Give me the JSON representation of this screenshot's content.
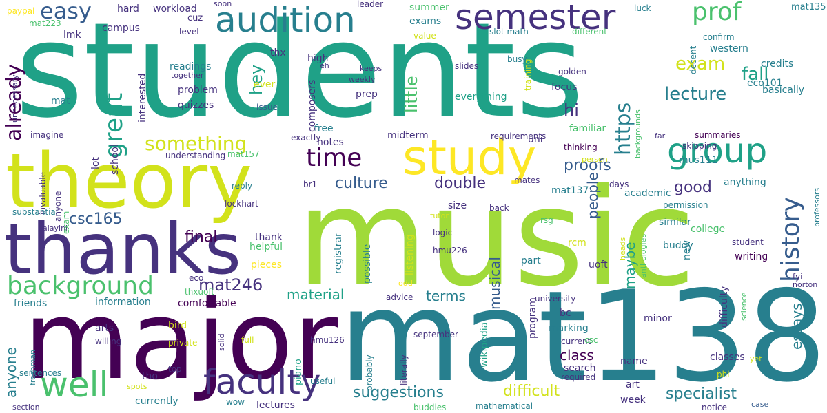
{
  "palette": [
    "#440154",
    "#46327e",
    "#365c8d",
    "#277f8e",
    "#1fa187",
    "#4ac16d",
    "#a0da39",
    "#d2e21b",
    "#fde725"
  ],
  "words": [
    {
      "text": "students",
      "color": "#1fa187"
    },
    {
      "text": "music",
      "color": "#a0da39"
    },
    {
      "text": "mat138",
      "color": "#277f8e"
    },
    {
      "text": "major",
      "color": "#440154"
    },
    {
      "text": "theory",
      "color": "#d2e21b"
    },
    {
      "text": "thanks",
      "color": "#46327e"
    },
    {
      "text": "study",
      "color": "#fde725"
    },
    {
      "text": "faculty",
      "color": "#46327e"
    },
    {
      "text": "well",
      "color": "#4ac16d"
    },
    {
      "text": "audition",
      "color": "#277f8e"
    },
    {
      "text": "semester",
      "color": "#46327e"
    },
    {
      "text": "group",
      "color": "#1fa187"
    },
    {
      "text": "background",
      "color": "#4ac16d"
    },
    {
      "text": "time",
      "color": "#440154"
    },
    {
      "text": "history",
      "color": "#365c8d"
    },
    {
      "text": "prof",
      "color": "#4ac16d"
    },
    {
      "text": "great",
      "color": "#1fa187"
    },
    {
      "text": "already",
      "color": "#440154"
    },
    {
      "text": "easy",
      "color": "#365c8d"
    },
    {
      "text": "something",
      "color": "#d2e21b"
    },
    {
      "text": "https",
      "color": "#277f8e"
    },
    {
      "text": "fall",
      "color": "#1fa187"
    },
    {
      "text": "exam",
      "color": "#d2e21b"
    },
    {
      "text": "lecture",
      "color": "#277f8e"
    },
    {
      "text": "hey",
      "color": "#1fa187"
    },
    {
      "text": "little",
      "color": "#4ac16d"
    },
    {
      "text": "hi",
      "color": "#46327e"
    },
    {
      "text": "culture",
      "color": "#365c8d"
    },
    {
      "text": "double",
      "color": "#46327e"
    },
    {
      "text": "proofs",
      "color": "#365c8d"
    },
    {
      "text": "good",
      "color": "#46327e"
    },
    {
      "text": "csc165",
      "color": "#365c8d"
    },
    {
      "text": "final",
      "color": "#440154"
    },
    {
      "text": "mat246",
      "color": "#46327e"
    },
    {
      "text": "material",
      "color": "#1fa187"
    },
    {
      "text": "terms",
      "color": "#277f8e"
    },
    {
      "text": "musical",
      "color": "#365c8d"
    },
    {
      "text": "people",
      "color": "#365c8d"
    },
    {
      "text": "maybe",
      "color": "#1fa187"
    },
    {
      "text": "essays",
      "color": "#277f8e"
    },
    {
      "text": "class",
      "color": "#440154"
    },
    {
      "text": "anyone",
      "color": "#277f8e"
    },
    {
      "text": "suggestions",
      "color": "#277f8e"
    },
    {
      "text": "difficult",
      "color": "#d2e21b"
    },
    {
      "text": "specialist",
      "color": "#277f8e"
    },
    {
      "text": "mus111",
      "color": "#277f8e"
    },
    {
      "text": "anything",
      "color": "#277f8e"
    },
    {
      "text": "credits",
      "color": "#277f8e"
    },
    {
      "text": "western",
      "color": "#277f8e"
    },
    {
      "text": "eco101",
      "color": "#277f8e"
    },
    {
      "text": "basically",
      "color": "#277f8e"
    },
    {
      "text": "mat135",
      "color": "#277f8e"
    },
    {
      "text": "confirm",
      "color": "#277f8e"
    },
    {
      "text": "luck",
      "color": "#277f8e"
    },
    {
      "text": "decent",
      "color": "#277f8e"
    },
    {
      "text": "different",
      "color": "#4ac16d"
    },
    {
      "text": "value",
      "color": "#d2e21b"
    },
    {
      "text": "training",
      "color": "#d2e21b"
    },
    {
      "text": "busy",
      "color": "#277f8e"
    },
    {
      "text": "slot math",
      "color": "#277f8e"
    },
    {
      "text": "summer",
      "color": "#4ac16d"
    },
    {
      "text": "exams",
      "color": "#277f8e"
    },
    {
      "text": "leader",
      "color": "#46327e"
    },
    {
      "text": "soon",
      "color": "#46327e"
    },
    {
      "text": "workload",
      "color": "#46327e"
    },
    {
      "text": "hard",
      "color": "#46327e"
    },
    {
      "text": "paypal",
      "color": "#fde725"
    },
    {
      "text": "mat223",
      "color": "#4ac16d"
    },
    {
      "text": "lmk",
      "color": "#46327e"
    },
    {
      "text": "campus",
      "color": "#46327e"
    },
    {
      "text": "cuz",
      "color": "#46327e"
    },
    {
      "text": "level",
      "color": "#46327e"
    },
    {
      "text": "thx",
      "color": "#46327e"
    },
    {
      "text": "high",
      "color": "#46327e"
    },
    {
      "text": "eh",
      "color": "#46327e"
    },
    {
      "text": "keeps",
      "color": "#46327e"
    },
    {
      "text": "slides",
      "color": "#46327e"
    },
    {
      "text": "golden",
      "color": "#46327e"
    },
    {
      "text": "focus",
      "color": "#46327e"
    },
    {
      "text": "everything",
      "color": "#1fa187"
    },
    {
      "text": "weekly",
      "color": "#46327e"
    },
    {
      "text": "prep",
      "color": "#46327e"
    },
    {
      "text": "ever",
      "color": "#d2e21b"
    },
    {
      "text": "readings",
      "color": "#277f8e"
    },
    {
      "text": "together",
      "color": "#46327e"
    },
    {
      "text": "problem",
      "color": "#46327e"
    },
    {
      "text": "quizzes",
      "color": "#46327e"
    },
    {
      "text": "interested",
      "color": "#46327e"
    },
    {
      "text": "composers",
      "color": "#46327e"
    },
    {
      "text": "nalayini",
      "color": "#46327e"
    },
    {
      "text": "mat",
      "color": "#277f8e"
    },
    {
      "text": "unnecessary",
      "color": "#46327e"
    },
    {
      "text": "issue",
      "color": "#365c8d"
    },
    {
      "text": "imagine",
      "color": "#46327e"
    },
    {
      "text": "exactly",
      "color": "#46327e"
    },
    {
      "text": "free",
      "color": "#277f8e"
    },
    {
      "text": "notes",
      "color": "#46327e"
    },
    {
      "text": "midterm",
      "color": "#46327e"
    },
    {
      "text": "requirements",
      "color": "#46327e"
    },
    {
      "text": "uni",
      "color": "#46327e"
    },
    {
      "text": "familiar",
      "color": "#4ac16d"
    },
    {
      "text": "thinking",
      "color": "#440154"
    },
    {
      "text": "person",
      "color": "#d2e21b"
    },
    {
      "text": "backgrounds",
      "color": "#4ac16d"
    },
    {
      "text": "far",
      "color": "#46327e"
    },
    {
      "text": "summaries",
      "color": "#440154"
    },
    {
      "text": "skipping",
      "color": "#46327e"
    },
    {
      "text": "lot",
      "color": "#46327e"
    },
    {
      "text": "school",
      "color": "#46327e"
    },
    {
      "text": "understanding",
      "color": "#46327e"
    },
    {
      "text": "mat157",
      "color": "#4ac16d"
    },
    {
      "text": "br1",
      "color": "#46327e"
    },
    {
      "text": "mates",
      "color": "#46327e"
    },
    {
      "text": "mat137",
      "color": "#277f8e"
    },
    {
      "text": "days",
      "color": "#46327e"
    },
    {
      "text": "academic",
      "color": "#277f8e"
    },
    {
      "text": "professors",
      "color": "#277f8e"
    },
    {
      "text": "invaluable",
      "color": "#46327e"
    },
    {
      "text": "anyone",
      "color": "#46327e"
    },
    {
      "text": "reply",
      "color": "#277f8e"
    },
    {
      "text": "lockhart",
      "color": "#46327e"
    },
    {
      "text": "permission",
      "color": "#277f8e"
    },
    {
      "text": "substantial",
      "color": "#277f8e"
    },
    {
      "text": "exam",
      "color": "#4ac16d"
    },
    {
      "text": "size",
      "color": "#46327e"
    },
    {
      "text": "tutor",
      "color": "#d2e21b"
    },
    {
      "text": "back",
      "color": "#46327e"
    },
    {
      "text": "rsg",
      "color": "#4ac16d"
    },
    {
      "text": "similar",
      "color": "#277f8e"
    },
    {
      "text": "student",
      "color": "#46327e"
    },
    {
      "text": "logic",
      "color": "#46327e"
    },
    {
      "text": "rcm",
      "color": "#d2e21b"
    },
    {
      "text": "new",
      "color": "#277f8e"
    },
    {
      "text": "college",
      "color": "#4ac16d"
    },
    {
      "text": "heads",
      "color": "#d2e21b"
    },
    {
      "text": "anthologies",
      "color": "#4ac16d"
    },
    {
      "text": "hmu226",
      "color": "#46327e"
    },
    {
      "text": "thank",
      "color": "#46327e"
    },
    {
      "text": "registrar",
      "color": "#277f8e"
    },
    {
      "text": "possible",
      "color": "#277f8e"
    },
    {
      "text": "listening",
      "color": "#d2e21b"
    },
    {
      "text": "helpful",
      "color": "#4ac16d"
    },
    {
      "text": "part",
      "color": "#277f8e"
    },
    {
      "text": "uoft",
      "color": "#46327e"
    },
    {
      "text": "buddy",
      "color": "#277f8e"
    },
    {
      "text": "writing",
      "color": "#440154"
    },
    {
      "text": "pieces",
      "color": "#fde725"
    },
    {
      "text": "eco",
      "color": "#46327e"
    },
    {
      "text": "thxuoft",
      "color": "#4ac16d"
    },
    {
      "text": "odd",
      "color": "#fde725"
    },
    {
      "text": "fyi",
      "color": "#46327e"
    },
    {
      "text": "norton",
      "color": "#46327e"
    },
    {
      "text": "friends",
      "color": "#277f8e"
    },
    {
      "text": "information",
      "color": "#277f8e"
    },
    {
      "text": "comfortable",
      "color": "#440154"
    },
    {
      "text": "advice",
      "color": "#46327e"
    },
    {
      "text": "university",
      "color": "#46327e"
    },
    {
      "text": "difficulty",
      "color": "#46327e"
    },
    {
      "text": "science",
      "color": "#4ac16d"
    },
    {
      "text": "wikipedia",
      "color": "#1fa187"
    },
    {
      "text": "program",
      "color": "#46327e"
    },
    {
      "text": "bc",
      "color": "#46327e"
    },
    {
      "text": "marking",
      "color": "#277f8e"
    },
    {
      "text": "minor",
      "color": "#46327e"
    },
    {
      "text": "freshman",
      "color": "#277f8e"
    },
    {
      "text": "arts",
      "color": "#46327e"
    },
    {
      "text": "willing",
      "color": "#46327e"
    },
    {
      "text": "bird",
      "color": "#d2e21b"
    },
    {
      "text": "private",
      "color": "#d2e21b"
    },
    {
      "text": "solid",
      "color": "#46327e"
    },
    {
      "text": "full",
      "color": "#d2e21b"
    },
    {
      "text": "hmu126",
      "color": "#46327e"
    },
    {
      "text": "piano",
      "color": "#1fa187"
    },
    {
      "text": "september",
      "color": "#46327e"
    },
    {
      "text": "current",
      "color": "#46327e"
    },
    {
      "text": "csc",
      "color": "#4ac16d"
    },
    {
      "text": "name",
      "color": "#46327e"
    },
    {
      "text": "classes",
      "color": "#46327e"
    },
    {
      "text": "yet",
      "color": "#d2e21b"
    },
    {
      "text": "performance",
      "color": "#46327e"
    },
    {
      "text": "sentences",
      "color": "#277f8e"
    },
    {
      "text": "tho",
      "color": "#46327e"
    },
    {
      "text": "top",
      "color": "#46327e"
    },
    {
      "text": "spots",
      "color": "#d2e21b"
    },
    {
      "text": "useful",
      "color": "#277f8e"
    },
    {
      "text": "probably",
      "color": "#277f8e"
    },
    {
      "text": "literally",
      "color": "#46327e"
    },
    {
      "text": "search",
      "color": "#46327e"
    },
    {
      "text": "required",
      "color": "#46327e"
    },
    {
      "text": "art",
      "color": "#46327e"
    },
    {
      "text": "phl",
      "color": "#d2e21b"
    },
    {
      "text": "currently",
      "color": "#277f8e"
    },
    {
      "text": "wow",
      "color": "#277f8e"
    },
    {
      "text": "section",
      "color": "#46327e"
    },
    {
      "text": "lectures",
      "color": "#46327e"
    },
    {
      "text": "buddies",
      "color": "#4ac16d"
    },
    {
      "text": "mathematical",
      "color": "#277f8e"
    },
    {
      "text": "week",
      "color": "#46327e"
    },
    {
      "text": "notice",
      "color": "#46327e"
    },
    {
      "text": "case",
      "color": "#365c8d"
    }
  ]
}
